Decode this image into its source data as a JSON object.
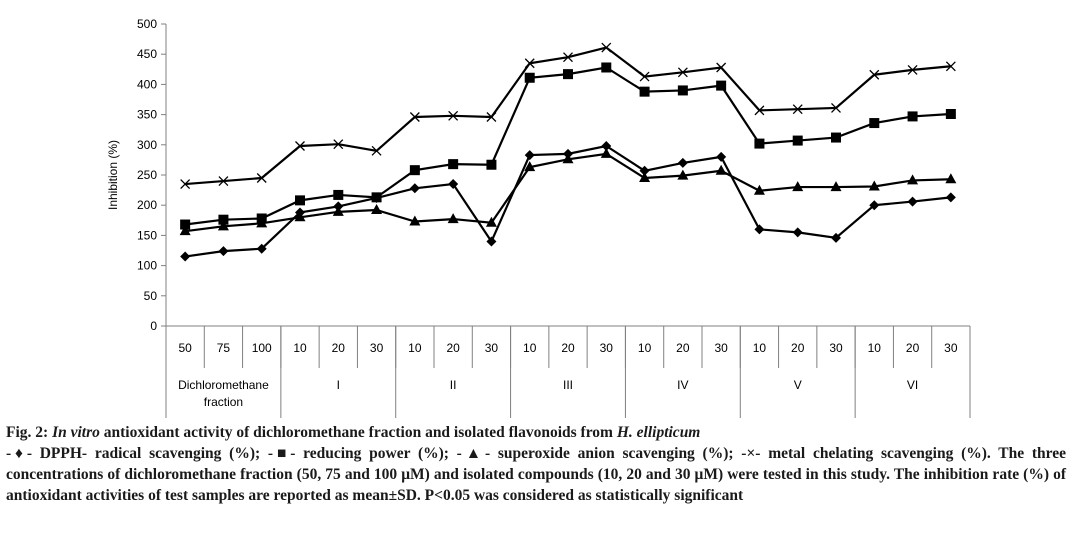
{
  "chart_data": {
    "type": "line",
    "ylabel": "Inhibition (%)",
    "ylim": [
      0,
      500
    ],
    "yticks": [
      0,
      50,
      100,
      150,
      200,
      250,
      300,
      350,
      400,
      450,
      500
    ],
    "groups": [
      {
        "name": "Dichloromethane fraction",
        "ticks": [
          "50",
          "75",
          "100"
        ]
      },
      {
        "name": "I",
        "ticks": [
          "10",
          "20",
          "30"
        ]
      },
      {
        "name": "II",
        "ticks": [
          "10",
          "20",
          "30"
        ]
      },
      {
        "name": "III",
        "ticks": [
          "10",
          "20",
          "30"
        ]
      },
      {
        "name": "IV",
        "ticks": [
          "10",
          "20",
          "30"
        ]
      },
      {
        "name": "V",
        "ticks": [
          "10",
          "20",
          "30"
        ]
      },
      {
        "name": "VI",
        "ticks": [
          "10",
          "20",
          "30"
        ]
      }
    ],
    "series": [
      {
        "marker": "diamond",
        "values": [
          115,
          124,
          128,
          188,
          198,
          212,
          228,
          235,
          140,
          283,
          285,
          298,
          257,
          270,
          280,
          160,
          155,
          146,
          200,
          206,
          213
        ]
      },
      {
        "marker": "square",
        "values": [
          168,
          176,
          178,
          208,
          217,
          213,
          258,
          268,
          267,
          411,
          417,
          428,
          388,
          390,
          398,
          302,
          307,
          312,
          336,
          347,
          351
        ]
      },
      {
        "marker": "triangle",
        "values": [
          157,
          165,
          170,
          180,
          189,
          192,
          173,
          177,
          171,
          263,
          276,
          285,
          245,
          249,
          257,
          224,
          230,
          230,
          231,
          241,
          243
        ]
      },
      {
        "marker": "cross",
        "values": [
          235,
          240,
          245,
          298,
          301,
          290,
          346,
          348,
          346,
          435,
          445,
          461,
          413,
          420,
          428,
          357,
          359,
          361,
          416,
          424,
          430
        ]
      }
    ]
  },
  "caption": {
    "fig_label": "Fig. 2:",
    "title_italic_1": "In vitro",
    "title_mid": "antioxidant activity of dichloromethane fraction and isolated flavonoids from",
    "title_italic_2": "H. ellipticum",
    "legend_text": "-♦- DPPH- radical scavenging (%); -■- reducing power (%); -▲- superoxide anion scavenging (%); -×- metal chelating scavenging (%). The three concentrations of dichloromethane fraction (50, 75 and 100 μM) and isolated compounds (10, 20 and 30 μM) were tested in this study. The inhibition rate (%) of antioxidant activities of test samples are reported as mean±SD. P<0.05 was considered as statistically significant"
  },
  "colors": {
    "line": "#000000",
    "axis": "#808080"
  }
}
